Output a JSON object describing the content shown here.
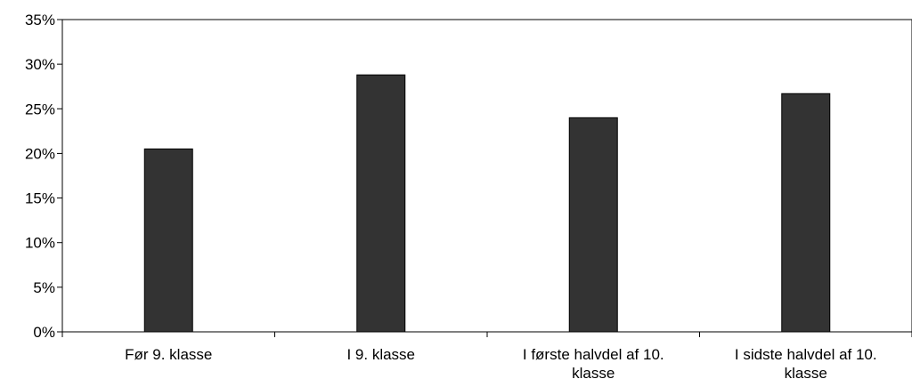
{
  "chart_data": {
    "type": "bar",
    "categories": [
      [
        "Før 9. klasse"
      ],
      [
        "I 9. klasse"
      ],
      [
        "I første halvdel af 10.",
        "klasse"
      ],
      [
        "I sidste halvdel af 10.",
        "klasse"
      ]
    ],
    "values": [
      0.205,
      0.288,
      0.24,
      0.267
    ],
    "ylim": [
      0,
      0.35
    ],
    "y_ticks": [
      "0%",
      "5%",
      "10%",
      "15%",
      "20%",
      "25%",
      "30%",
      "35%"
    ],
    "title": "",
    "xlabel": "",
    "ylabel": "",
    "grid": false,
    "legend": "none",
    "bar_color": "#333333",
    "bar_edge_color": "#000000"
  }
}
